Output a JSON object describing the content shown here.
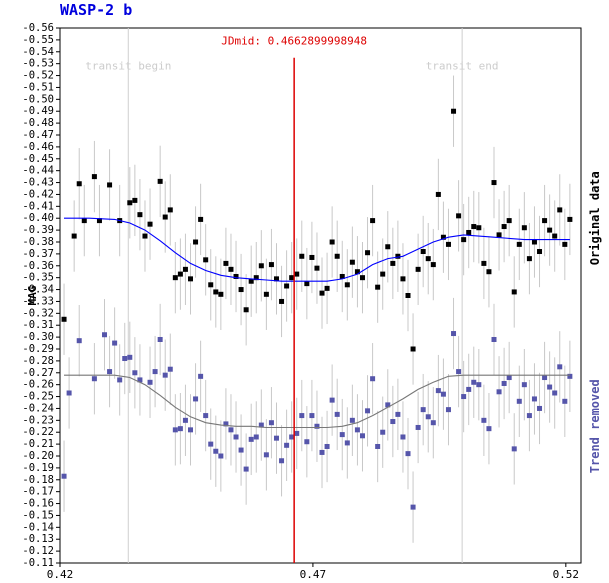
{
  "chart_data": {
    "type": "scatter",
    "title": "WASP-2 b",
    "ylabel": "MAG",
    "right_label_top": "Original data",
    "right_label_bottom": "Trend removed",
    "annotation_mid": "JDmid: 0.4662899998948",
    "annotation_begin": "transit begin",
    "annotation_end": "transit end",
    "xlim": [
      0.42,
      0.523
    ],
    "ylim": [
      -0.56,
      -0.11
    ],
    "y_inverted": true,
    "grid": false,
    "x_ticks": [
      0.42,
      0.47,
      0.52
    ],
    "x_tick_labels": [
      "0.42",
      "0.47",
      "0.52"
    ],
    "y_ticks": [
      -0.56,
      -0.55,
      -0.54,
      -0.53,
      -0.52,
      -0.51,
      -0.5,
      -0.49,
      -0.48,
      -0.47,
      -0.46,
      -0.45,
      -0.44,
      -0.43,
      -0.42,
      -0.41,
      -0.4,
      -0.39,
      -0.38,
      -0.37,
      -0.36,
      -0.35,
      -0.34,
      -0.33,
      -0.32,
      -0.31,
      -0.3,
      -0.29,
      -0.28,
      -0.27,
      -0.26,
      -0.25,
      -0.24,
      -0.23,
      -0.22,
      -0.21,
      -0.2,
      -0.19,
      -0.18,
      -0.17,
      -0.16,
      -0.15,
      -0.14,
      -0.13,
      -0.12,
      -0.11
    ],
    "y_tick_labels": [
      "-0.56",
      "-0.55",
      "-0.54",
      "-0.53",
      "-0.52",
      "-0.51",
      "-0.50",
      "-0.49",
      "-0.48",
      "-0.47",
      "-0.46",
      "-0.45",
      "-0.44",
      "-0.43",
      "-0.42",
      "-0.41",
      "-0.40",
      "-0.39",
      "-0.38",
      "-0.37",
      "-0.36",
      "-0.35",
      "-0.34",
      "-0.33",
      "-0.32",
      "-0.31",
      "-0.30",
      "-0.29",
      "-0.28",
      "-0.27",
      "-0.26",
      "-0.25",
      "-0.24",
      "-0.23",
      "-0.22",
      "-0.21",
      "-0.20",
      "-0.19",
      "-0.18",
      "-0.17",
      "-0.16",
      "-0.15",
      "-0.14",
      "-0.13",
      "-0.12",
      "-0.11"
    ],
    "vertical_lines": {
      "transit_begin": 0.4335,
      "transit_mid": 0.46629,
      "transit_end": 0.4995
    },
    "error_bar_half_height": 0.03,
    "colors": {
      "original": "#000000",
      "original_model": "#0000ff",
      "detrended": "#5555aa",
      "detrended_model": "#777777",
      "mid_line": "#dd0000",
      "error_bar": "#c8c8c8",
      "transit_line": "#cfcfcf",
      "title": "#0000dd",
      "right_label_bottom": "#5555aa"
    },
    "series": [
      {
        "name": "Original data",
        "style": "points",
        "x": [
          0.4208,
          0.4228,
          0.4238,
          0.4248,
          0.4268,
          0.4278,
          0.4298,
          0.4318,
          0.4338,
          0.4348,
          0.4358,
          0.4368,
          0.4378,
          0.4398,
          0.4408,
          0.4418,
          0.4428,
          0.4438,
          0.4448,
          0.4458,
          0.4468,
          0.4478,
          0.4488,
          0.4498,
          0.4508,
          0.4518,
          0.4528,
          0.4538,
          0.4548,
          0.4558,
          0.4568,
          0.4578,
          0.4588,
          0.4598,
          0.4608,
          0.4618,
          0.4628,
          0.4638,
          0.4648,
          0.4658,
          0.4668,
          0.4678,
          0.4688,
          0.4698,
          0.4708,
          0.4718,
          0.4728,
          0.4738,
          0.4748,
          0.4758,
          0.4768,
          0.4778,
          0.4788,
          0.4798,
          0.4808,
          0.4818,
          0.4828,
          0.4838,
          0.4848,
          0.4858,
          0.4868,
          0.4878,
          0.4888,
          0.4898,
          0.4908,
          0.4918,
          0.4928,
          0.4938,
          0.4948,
          0.4958,
          0.4968,
          0.4978,
          0.4988,
          0.4998,
          0.5008,
          0.5018,
          0.5028,
          0.5038,
          0.5048,
          0.5058,
          0.5068,
          0.5078,
          0.5088,
          0.5098,
          0.5108,
          0.5118,
          0.5128,
          0.5138,
          0.5148,
          0.5158,
          0.5168,
          0.5178,
          0.5188,
          0.5198,
          0.5208
        ],
        "y": [
          -0.315,
          -0.385,
          -0.429,
          -0.398,
          -0.435,
          -0.398,
          -0.428,
          -0.398,
          -0.413,
          -0.415,
          -0.403,
          -0.385,
          -0.395,
          -0.431,
          -0.401,
          -0.407,
          -0.35,
          -0.353,
          -0.357,
          -0.349,
          -0.38,
          -0.399,
          -0.365,
          -0.344,
          -0.338,
          -0.336,
          -0.362,
          -0.357,
          -0.351,
          -0.34,
          -0.323,
          -0.347,
          -0.35,
          -0.36,
          -0.336,
          -0.361,
          -0.349,
          -0.33,
          -0.343,
          -0.35,
          -0.353,
          -0.368,
          -0.345,
          -0.367,
          -0.358,
          -0.337,
          -0.341,
          -0.38,
          -0.368,
          -0.351,
          -0.344,
          -0.363,
          -0.355,
          -0.35,
          -0.371,
          -0.398,
          -0.342,
          -0.353,
          -0.376,
          -0.362,
          -0.368,
          -0.349,
          -0.335,
          -0.29,
          -0.357,
          -0.372,
          -0.366,
          -0.361,
          -0.42,
          -0.384,
          -0.378,
          -0.49,
          -0.402,
          -0.382,
          -0.388,
          -0.393,
          -0.392,
          -0.362,
          -0.355,
          -0.43,
          -0.386,
          -0.393,
          -0.398,
          -0.338,
          -0.378,
          -0.392,
          -0.366,
          -0.38,
          -0.372,
          -0.398,
          -0.39,
          -0.385,
          -0.407,
          -0.378,
          -0.399
        ]
      },
      {
        "name": "Original data model",
        "style": "line",
        "x": [
          0.4208,
          0.4258,
          0.4308,
          0.4338,
          0.4368,
          0.4398,
          0.4428,
          0.4458,
          0.4488,
          0.4518,
          0.4548,
          0.4578,
          0.4608,
          0.4638,
          0.4668,
          0.4698,
          0.4728,
          0.4758,
          0.4788,
          0.4818,
          0.4848,
          0.4878,
          0.4908,
          0.4938,
          0.4968,
          0.4998,
          0.5028,
          0.5058,
          0.5088,
          0.5118,
          0.5148,
          0.5178,
          0.5208
        ],
        "y": [
          -0.4,
          -0.4,
          -0.399,
          -0.396,
          -0.39,
          -0.381,
          -0.371,
          -0.362,
          -0.356,
          -0.352,
          -0.35,
          -0.349,
          -0.348,
          -0.347,
          -0.347,
          -0.347,
          -0.347,
          -0.349,
          -0.353,
          -0.361,
          -0.366,
          -0.368,
          -0.374,
          -0.38,
          -0.384,
          -0.386,
          -0.385,
          -0.384,
          -0.383,
          -0.382,
          -0.382,
          -0.382,
          -0.382
        ]
      },
      {
        "name": "Trend removed",
        "style": "points",
        "x": [
          0.4208,
          0.4218,
          0.4238,
          0.4268,
          0.4288,
          0.4298,
          0.4308,
          0.4318,
          0.4328,
          0.4338,
          0.4348,
          0.4358,
          0.4378,
          0.4388,
          0.4398,
          0.4408,
          0.4418,
          0.4428,
          0.4438,
          0.4448,
          0.4458,
          0.4468,
          0.4478,
          0.4488,
          0.4498,
          0.4508,
          0.4518,
          0.4528,
          0.4538,
          0.4548,
          0.4558,
          0.4568,
          0.4578,
          0.4588,
          0.4598,
          0.4608,
          0.4618,
          0.4628,
          0.4638,
          0.4648,
          0.4658,
          0.4668,
          0.4678,
          0.4688,
          0.4698,
          0.4708,
          0.4718,
          0.4728,
          0.4738,
          0.4748,
          0.4758,
          0.4768,
          0.4778,
          0.4788,
          0.4798,
          0.4808,
          0.4818,
          0.4828,
          0.4838,
          0.4848,
          0.4858,
          0.4868,
          0.4878,
          0.4888,
          0.4898,
          0.4908,
          0.4918,
          0.4928,
          0.4938,
          0.4948,
          0.4958,
          0.4968,
          0.4978,
          0.4988,
          0.4998,
          0.5008,
          0.5018,
          0.5028,
          0.5038,
          0.5048,
          0.5058,
          0.5068,
          0.5078,
          0.5088,
          0.5098,
          0.5108,
          0.5118,
          0.5128,
          0.5138,
          0.5148,
          0.5158,
          0.5168,
          0.5178,
          0.5188,
          0.5198,
          0.5208
        ],
        "y": [
          -0.183,
          -0.253,
          -0.297,
          -0.265,
          -0.302,
          -0.271,
          -0.295,
          -0.264,
          -0.282,
          -0.283,
          -0.27,
          -0.264,
          -0.262,
          -0.271,
          -0.298,
          -0.268,
          -0.273,
          -0.222,
          -0.223,
          -0.23,
          -0.222,
          -0.248,
          -0.267,
          -0.234,
          -0.21,
          -0.204,
          -0.2,
          -0.227,
          -0.222,
          -0.216,
          -0.205,
          -0.189,
          -0.214,
          -0.216,
          -0.226,
          -0.201,
          -0.228,
          -0.215,
          -0.196,
          -0.209,
          -0.216,
          -0.219,
          -0.234,
          -0.212,
          -0.234,
          -0.225,
          -0.203,
          -0.208,
          -0.247,
          -0.235,
          -0.218,
          -0.211,
          -0.23,
          -0.222,
          -0.217,
          -0.238,
          -0.265,
          -0.208,
          -0.22,
          -0.243,
          -0.229,
          -0.235,
          -0.216,
          -0.202,
          -0.157,
          -0.224,
          -0.239,
          -0.233,
          -0.228,
          -0.255,
          -0.252,
          -0.239,
          -0.303,
          -0.271,
          -0.25,
          -0.256,
          -0.262,
          -0.26,
          -0.23,
          -0.223,
          -0.298,
          -0.254,
          -0.261,
          -0.266,
          -0.206,
          -0.246,
          -0.26,
          -0.234,
          -0.248,
          -0.24,
          -0.266,
          -0.258,
          -0.253,
          -0.275,
          -0.246,
          -0.267
        ]
      },
      {
        "name": "Trend removed model",
        "style": "line",
        "x": [
          0.4208,
          0.4258,
          0.4308,
          0.4338,
          0.4368,
          0.4398,
          0.4428,
          0.4458,
          0.4488,
          0.4518,
          0.4548,
          0.4578,
          0.4608,
          0.4638,
          0.4668,
          0.4698,
          0.4728,
          0.4758,
          0.4788,
          0.4818,
          0.4848,
          0.4878,
          0.4908,
          0.4938,
          0.4968,
          0.4998,
          0.5028,
          0.5058,
          0.5088,
          0.5118,
          0.5148,
          0.5178,
          0.5208
        ],
        "y": [
          -0.268,
          -0.268,
          -0.268,
          -0.266,
          -0.26,
          -0.251,
          -0.241,
          -0.233,
          -0.228,
          -0.226,
          -0.225,
          -0.225,
          -0.224,
          -0.224,
          -0.224,
          -0.224,
          -0.224,
          -0.225,
          -0.228,
          -0.234,
          -0.241,
          -0.248,
          -0.256,
          -0.262,
          -0.267,
          -0.268,
          -0.268,
          -0.268,
          -0.268,
          -0.268,
          -0.268,
          -0.268,
          -0.268
        ]
      }
    ]
  }
}
